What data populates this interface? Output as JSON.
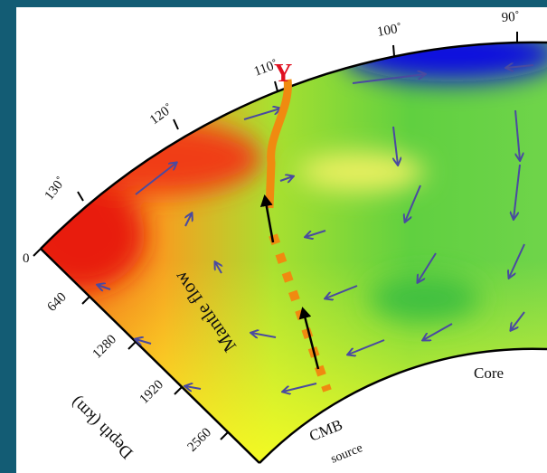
{
  "degree_labels": [
    "130˚",
    "120˚",
    "110˚",
    "100˚",
    "90˚"
  ],
  "depth_labels": [
    "0",
    "640",
    "1280",
    "1920",
    "2560"
  ],
  "axis_title": "Depth (km)",
  "annotations": {
    "mantle_flow": "Mantle flow",
    "plume": "Y",
    "cmb": "CMB",
    "source": "source",
    "core": "Core"
  }
}
